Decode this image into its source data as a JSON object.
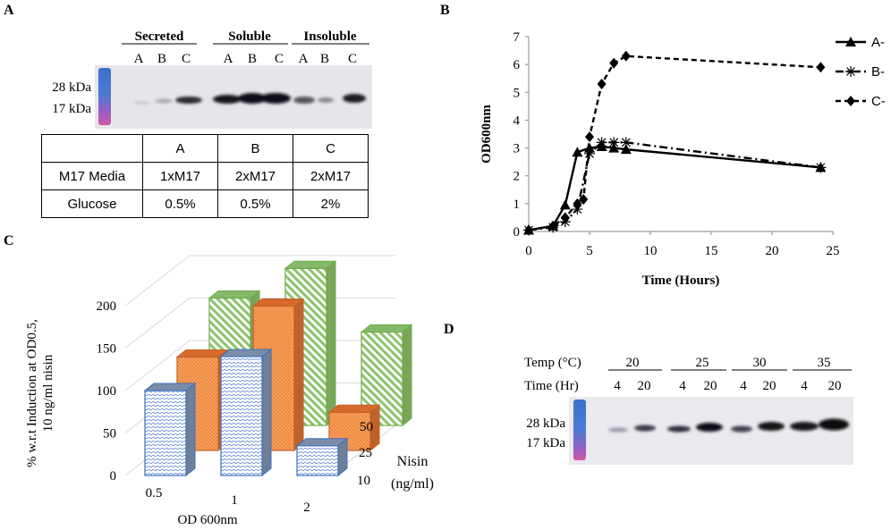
{
  "panel_labels": {
    "a": "A",
    "b": "B",
    "c": "C",
    "d": "D"
  },
  "panel_a": {
    "groups": [
      "Secreted",
      "Soluble",
      "Insoluble"
    ],
    "lanes": [
      "A",
      "B",
      "C",
      "A",
      "B",
      "C",
      "A",
      "B",
      "C"
    ],
    "markers": [
      "28 kDa",
      "17 kDa"
    ],
    "table": {
      "header": [
        "",
        "A",
        "B",
        "C"
      ],
      "rows": [
        [
          "M17 Media",
          "1xM17",
          "2xM17",
          "2xM17"
        ],
        [
          "Glucose",
          "0.5%",
          "0.5%",
          "2%"
        ]
      ]
    }
  },
  "panel_d": {
    "row_labels": [
      "Temp (°C)",
      "Time (Hr)"
    ],
    "temps": [
      "20",
      "25",
      "30",
      "35"
    ],
    "times": [
      "4",
      "20",
      "4",
      "20",
      "4",
      "20",
      "4",
      "20"
    ],
    "markers": [
      "28 kDa",
      "17 kDa"
    ]
  },
  "chart_data": [
    {
      "type": "line",
      "panel": "B",
      "xlabel": "Time (Hours)",
      "ylabel": "OD600nm",
      "xlim": [
        0,
        25
      ],
      "ylim": [
        0,
        7
      ],
      "xticks": [
        0,
        5,
        10,
        15,
        20,
        25
      ],
      "yticks": [
        0,
        1,
        2,
        3,
        4,
        5,
        6,
        7
      ],
      "legend_position": "top-right",
      "series": [
        {
          "name": "A-",
          "style": "solid",
          "marker": "triangle",
          "x": [
            0,
            2,
            3,
            4,
            5,
            6,
            7,
            8,
            24
          ],
          "y": [
            0.05,
            0.2,
            0.95,
            2.85,
            3.0,
            3.05,
            3.0,
            2.95,
            2.3
          ]
        },
        {
          "name": "B-",
          "style": "dashdot",
          "marker": "asterisk",
          "x": [
            0,
            2,
            3,
            4,
            5,
            6,
            7,
            8,
            24
          ],
          "y": [
            0.05,
            0.15,
            0.35,
            0.8,
            2.8,
            3.2,
            3.2,
            3.2,
            2.3
          ]
        },
        {
          "name": "C-",
          "style": "dashed",
          "marker": "diamond",
          "x": [
            0,
            2,
            3,
            4,
            4.5,
            5,
            6,
            7,
            8,
            24
          ],
          "y": [
            0.05,
            0.2,
            0.5,
            1.0,
            1.15,
            3.4,
            5.3,
            6.05,
            6.3,
            5.9
          ]
        }
      ]
    },
    {
      "type": "bar",
      "panel": "C",
      "title": "",
      "xlabel": "OD 600nm",
      "ylabel": "% w.r.t Induction at OD0.5, 10 ng/ml nisin",
      "zlabel": "Nisin (ng/ml)",
      "ylim": [
        0,
        200
      ],
      "yticks": [
        0,
        50,
        100,
        150,
        200
      ],
      "categories": [
        "0.5",
        "1",
        "2"
      ],
      "series": [
        {
          "name": "10",
          "color": "#3b6fc0",
          "values": [
            100,
            140,
            35
          ]
        },
        {
          "name": "25",
          "color": "#e8803a",
          "values": [
            110,
            170,
            45
          ]
        },
        {
          "name": "50",
          "color": "#6caa4c",
          "values": [
            150,
            185,
            110
          ]
        }
      ]
    }
  ]
}
